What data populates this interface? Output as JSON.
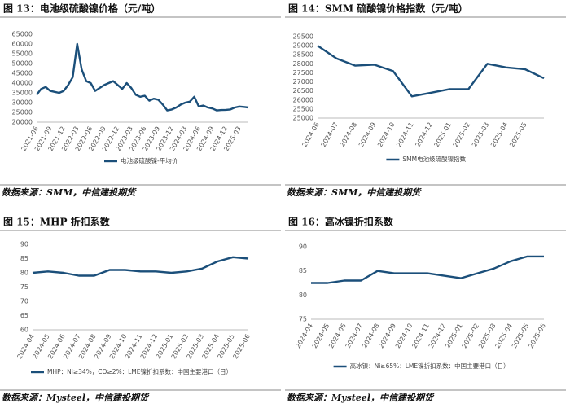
{
  "chart_data": [
    {
      "type": "line",
      "title": "图 13：电池级硫酸镍价格（元/吨）",
      "source": "数据来源：SMM，中信建投期货",
      "x": [
        "2021-06",
        "2021-07",
        "2021-08",
        "2021-09",
        "2021-10",
        "2021-11",
        "2021-12",
        "2022-01",
        "2022-02",
        "2022-03",
        "2022-04",
        "2022-05",
        "2022-06",
        "2022-07",
        "2022-08",
        "2022-09",
        "2022-10",
        "2022-11",
        "2022-12",
        "2023-01",
        "2023-02",
        "2023-03",
        "2023-04",
        "2023-05",
        "2023-06",
        "2023-07",
        "2023-08",
        "2023-09",
        "2023-10",
        "2023-11",
        "2023-12",
        "2024-01",
        "2024-02",
        "2024-03",
        "2024-04",
        "2024-05",
        "2024-06",
        "2024-07",
        "2024-08",
        "2024-09",
        "2024-10",
        "2024-11",
        "2024-12",
        "2025-01",
        "2025-02",
        "2025-03",
        "2025-04",
        "2025-05"
      ],
      "series": [
        {
          "name": "电池级硫酸镍-平均价",
          "color": "#1b4f7a",
          "values": [
            34000,
            37000,
            38000,
            36000,
            35500,
            35000,
            36000,
            39000,
            43000,
            60000,
            47000,
            41000,
            40000,
            36000,
            37500,
            39000,
            40000,
            41000,
            39000,
            37000,
            40000,
            37500,
            34000,
            33000,
            33500,
            31000,
            32000,
            31500,
            29000,
            26000,
            26500,
            27500,
            29000,
            30000,
            30500,
            33000,
            28000,
            28500,
            27500,
            27000,
            26000,
            26200,
            26300,
            26500,
            27500,
            28000,
            27800,
            27500
          ]
        }
      ],
      "ylim": [
        20000,
        65000
      ],
      "yticks": [
        20000,
        25000,
        30000,
        35000,
        40000,
        45000,
        50000,
        55000,
        60000,
        65000
      ],
      "xticks": [
        "2021-06",
        "2021-09",
        "2021-12",
        "2022-03",
        "2022-06",
        "2022-09",
        "2022-12",
        "2023-03",
        "2023-06",
        "2023-09",
        "2023-12",
        "2024-03",
        "2024-06",
        "2024-09",
        "2024-12",
        "2025-03"
      ],
      "grid": false
    },
    {
      "type": "line",
      "title": "图 14：SMM 硫酸镍价格指数（元/吨）",
      "source": "数据来源：SMM，中信建投期货",
      "x": [
        "2024-06",
        "2024-07",
        "2024-08",
        "2024-09",
        "2024-10",
        "2024-11",
        "2024-12",
        "2025-01",
        "2025-02",
        "2025-03",
        "2025-04",
        "2025-05",
        "2025-06"
      ],
      "series": [
        {
          "name": "SMM电池级硫酸镍指数",
          "color": "#1b4f7a",
          "values": [
            29000,
            28300,
            27900,
            27950,
            27600,
            26200,
            26400,
            26600,
            26600,
            28000,
            27800,
            27700,
            27200
          ]
        }
      ],
      "ylim": [
        25000,
        29500
      ],
      "yticks": [
        25000,
        25500,
        26000,
        26500,
        27000,
        27500,
        28000,
        28500,
        29000,
        29500
      ],
      "xticks": [
        "2024-06",
        "2024-07",
        "2024-08",
        "2024-09",
        "2024-10",
        "2024-11",
        "2024-12",
        "2025-01",
        "2025-02",
        "2025-03",
        "2025-04",
        "2025-05"
      ],
      "grid": false
    },
    {
      "type": "line",
      "title": "图 15：MHP 折扣系数",
      "source": "数据来源：Mysteel，中信建投期货",
      "x": [
        "2024-04",
        "2024-05",
        "2024-06",
        "2024-07",
        "2024-08",
        "2024-09",
        "2024-10",
        "2024-11",
        "2024-12",
        "2025-01",
        "2025-02",
        "2025-03",
        "2025-04",
        "2025-05",
        "2025-06"
      ],
      "series": [
        {
          "name": "MHP：Ni≥34%，CO≥2%：LME镍折扣系数：中国主要港口（日）",
          "color": "#1b4f7a",
          "values": [
            80,
            80.5,
            80,
            79,
            79,
            81,
            81,
            80.5,
            80.5,
            80,
            80.5,
            81.5,
            84,
            85.5,
            85
          ]
        }
      ],
      "ylim": [
        60,
        90
      ],
      "yticks": [
        60,
        65,
        70,
        75,
        80,
        85,
        90
      ],
      "xticks": [
        "2024-04",
        "2024-05",
        "2024-06",
        "2024-07",
        "2024-08",
        "2024-09",
        "2024-10",
        "2024-11",
        "2024-12",
        "2025-01",
        "2025-02",
        "2025-03",
        "2025-04",
        "2025-05",
        "2025-06"
      ],
      "grid": false
    },
    {
      "type": "line",
      "title": "图 16：高冰镍折扣系数",
      "source": "数据来源：Mysteel，中信建投期货",
      "x": [
        "2024-04",
        "2024-05",
        "2024-06",
        "2024-07",
        "2024-08",
        "2024-09",
        "2024-10",
        "2024-11",
        "2024-12",
        "2025-01",
        "2025-02",
        "2025-03",
        "2025-04",
        "2025-05",
        "2025-06"
      ],
      "series": [
        {
          "name": "高冰镍：Ni≥65%：LME镍折扣系数：中国主要港口（日）",
          "color": "#1b4f7a",
          "values": [
            82.5,
            82.5,
            83,
            83,
            85,
            84.5,
            84.5,
            84.5,
            84,
            83.5,
            84.5,
            85.5,
            87,
            88,
            88
          ]
        }
      ],
      "ylim": [
        75,
        90
      ],
      "yticks": [
        75,
        80,
        85,
        90
      ],
      "xticks": [
        "2024-04",
        "2024-05",
        "2024-06",
        "2024-07",
        "2024-08",
        "2024-09",
        "2024-10",
        "2024-11",
        "2024-12",
        "2025-01",
        "2025-02",
        "2025-03",
        "2025-04",
        "2025-05",
        "2025-06"
      ],
      "grid": false
    }
  ]
}
